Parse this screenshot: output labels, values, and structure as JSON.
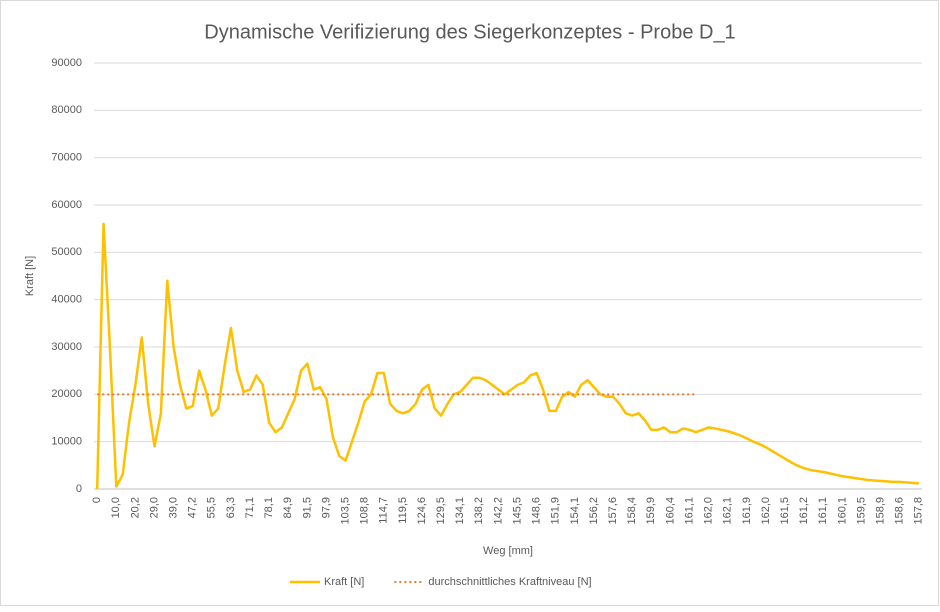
{
  "chart_data": {
    "type": "line",
    "title": "Dynamische Verifizierung des Siegerkonzeptes - Probe D_1",
    "xlabel": "Weg [mm]",
    "ylabel": "Kraft [N]",
    "categories": [
      "0",
      null,
      null,
      "10,0",
      null,
      null,
      "20,2",
      null,
      null,
      "29,0",
      null,
      null,
      "39,0",
      null,
      null,
      "47,2",
      null,
      null,
      "55,5",
      null,
      null,
      "63,3",
      null,
      null,
      "71,1",
      null,
      null,
      "78,1",
      null,
      null,
      "84,9",
      null,
      null,
      "91,5",
      null,
      null,
      "97,9",
      null,
      null,
      "103,5",
      null,
      null,
      "108,8",
      null,
      null,
      "114,7",
      null,
      null,
      "119,5",
      null,
      null,
      "124,6",
      null,
      null,
      "129,5",
      null,
      null,
      "134,1",
      null,
      null,
      "138,2",
      null,
      null,
      "142,2",
      null,
      null,
      "145,5",
      null,
      null,
      "148,6",
      null,
      null,
      "151,9",
      null,
      null,
      "154,1",
      null,
      null,
      "156,2",
      null,
      null,
      "157,6",
      null,
      null,
      "158,4",
      null,
      null,
      "159,9",
      null,
      null,
      "160,4",
      null,
      null,
      "161,1",
      null,
      null,
      "162,0",
      null,
      null,
      "162,1",
      null,
      null,
      "161,9",
      null,
      null,
      "162,0",
      null,
      null,
      "161,5",
      null,
      null,
      "161,2",
      null,
      null,
      "161,1",
      null,
      null,
      "160,1",
      null,
      null,
      "159,5",
      null,
      null,
      "158,9",
      null,
      null,
      "158,6",
      null,
      null,
      "157,8"
    ],
    "series": [
      {
        "name": "Kraft [N]",
        "color": "#ffc000",
        "dash": false,
        "values": [
          0,
          56000,
          30000,
          500,
          3000,
          14000,
          22000,
          32000,
          18000,
          9000,
          16000,
          44000,
          30000,
          22000,
          17000,
          17500,
          25000,
          21000,
          15500,
          17000,
          26000,
          34000,
          25000,
          20500,
          21000,
          24000,
          22000,
          14000,
          12000,
          13000,
          16000,
          19000,
          25000,
          26500,
          21000,
          21500,
          19000,
          11000,
          7000,
          6000,
          10000,
          14000,
          18500,
          20000,
          24500,
          24500,
          18000,
          16500,
          16000,
          16500,
          18000,
          21000,
          22000,
          17000,
          15500,
          18000,
          20000,
          20500,
          22000,
          23500,
          23500,
          23000,
          22000,
          21000,
          20000,
          21000,
          22000,
          22500,
          24000,
          24500,
          21000,
          16500,
          16500,
          19500,
          20500,
          19500,
          22000,
          23000,
          21500,
          20000,
          19500,
          19500,
          18000,
          16000,
          15500,
          16000,
          14500,
          12500,
          12500,
          13000,
          12000,
          12000,
          12800,
          12500,
          12000,
          12500,
          13000,
          12800,
          12500,
          12200,
          11800,
          11300,
          10700,
          10000,
          9500,
          8800,
          8000,
          7200,
          6400,
          5600,
          4900,
          4400,
          4000,
          3800,
          3600,
          3300,
          3000,
          2700,
          2500,
          2300,
          2100,
          1900,
          1800,
          1700,
          1600,
          1500,
          1500,
          1400,
          1300,
          1200
        ]
      },
      {
        "name": "durchschnittliches Kraftniveau [N]",
        "color": "#ed7d31",
        "dash": true,
        "values": [
          20000,
          20000,
          20000,
          20000,
          20000,
          20000,
          20000,
          20000,
          20000,
          20000,
          20000,
          20000,
          20000,
          20000,
          20000,
          20000,
          20000,
          20000,
          20000,
          20000,
          20000,
          20000,
          20000,
          20000,
          20000,
          20000,
          20000,
          20000,
          20000,
          20000,
          20000,
          20000,
          20000,
          20000,
          20000,
          20000,
          20000,
          20000,
          20000,
          20000,
          20000,
          20000,
          20000,
          20000,
          20000,
          20000,
          20000,
          20000,
          20000,
          20000,
          20000,
          20000,
          20000,
          20000,
          20000,
          20000,
          20000,
          20000,
          20000,
          20000,
          20000,
          20000,
          20000,
          20000,
          20000,
          20000,
          20000,
          20000,
          20000,
          20000,
          20000,
          20000,
          20000,
          20000,
          20000,
          20000,
          20000,
          20000,
          20000,
          20000,
          20000,
          20000,
          20000,
          20000,
          20000,
          20000,
          20000,
          20000,
          20000,
          20000,
          20000,
          20000,
          20000,
          20000,
          20000,
          null,
          null,
          null,
          null,
          null,
          null,
          null,
          null,
          null,
          null,
          null,
          null,
          null,
          null,
          null,
          null,
          null,
          null,
          null,
          null,
          null,
          null,
          null,
          null,
          null,
          null,
          null,
          null,
          null,
          null,
          null,
          null,
          null,
          null,
          null
        ]
      }
    ],
    "ylim": [
      0,
      90000
    ],
    "yticks": [
      0,
      10000,
      20000,
      30000,
      40000,
      50000,
      60000,
      70000,
      80000,
      90000
    ],
    "grid": true,
    "legend": "bottom"
  }
}
